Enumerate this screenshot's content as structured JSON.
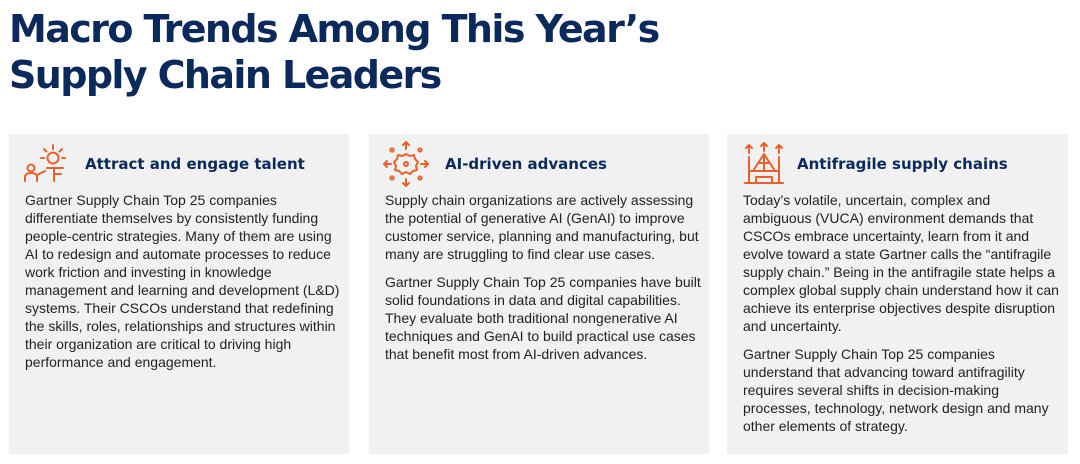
{
  "title": {
    "line1": "Macro Trends Among This Year’s",
    "line2": "Supply Chain Leaders"
  },
  "colors": {
    "title": "#0b2a5b",
    "accent_icon": "#e8612c",
    "card_background": "#f1f1f1",
    "body_text": "#222222"
  },
  "cards": [
    {
      "icon": "person-presenting-idea-icon",
      "title": "Attract and engage talent",
      "paragraphs": [
        "Gartner Supply Chain Top 25 companies differentiate themselves by consistently funding people-centric strategies. Many of them are using AI to redesign and automate processes to reduce work friction and investing in knowledge management and learning and development (L&D) systems. Their CSCOs understand that redefining the skills, roles, relationships and structures within their organization are critical to driving high performance and engagement."
      ]
    },
    {
      "icon": "ai-network-gear-icon",
      "title": "AI-driven advances",
      "paragraphs": [
        "Supply chain organizations are actively assessing the potential of generative AI (GenAI) to improve customer service, planning and manufacturing, but many are struggling to find clear use cases.",
        "Gartner Supply Chain Top 25 companies have built solid foundations in data and digital capabilities. They evaluate both traditional nongenerative AI techniques and GenAI to build practical use cases that benefit most from AI-driven advances."
      ]
    },
    {
      "icon": "antifragile-structure-icon",
      "title": "Antifragile supply chains",
      "paragraphs": [
        "Today’s volatile, uncertain, complex and ambiguous (VUCA) environment demands that CSCOs embrace uncertainty, learn from it and evolve toward a state Gartner calls the “antifragile supply chain.” Being in the antifragile state helps a complex global supply chain understand how it can achieve its enterprise objectives despite disruption and uncertainty.",
        "Gartner Supply Chain Top 25 companies understand that advancing toward antifragility requires several shifts in decision-making processes, technology, network design and many other elements of strategy."
      ]
    }
  ]
}
